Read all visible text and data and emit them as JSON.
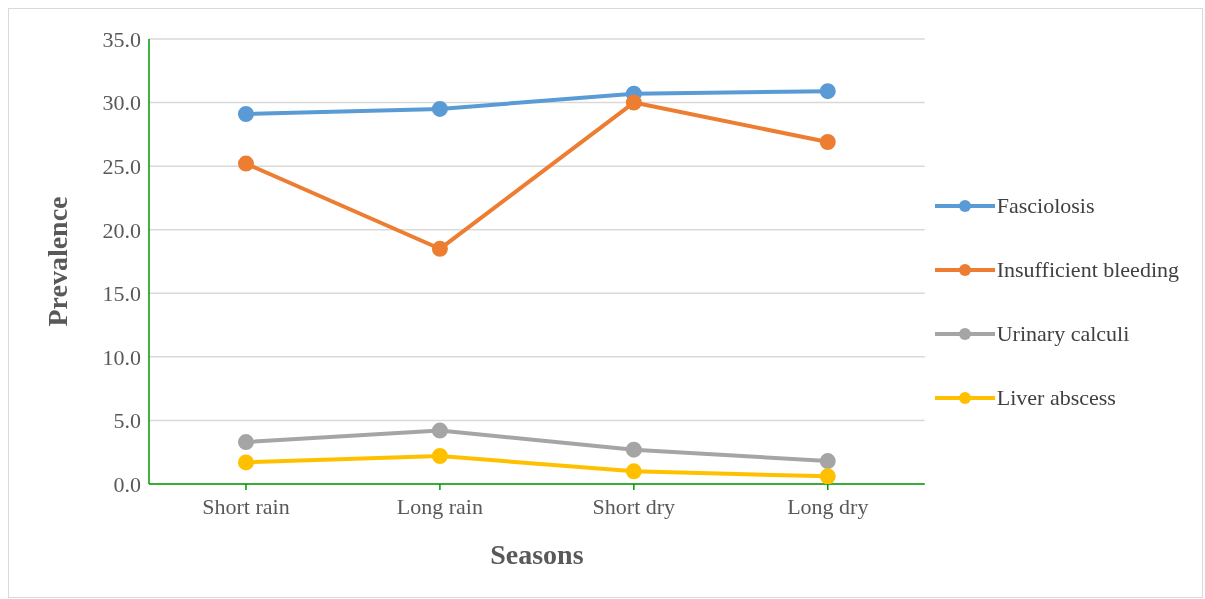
{
  "chart_data": {
    "type": "line",
    "xlabel": "Seasons",
    "ylabel": "Prevalence",
    "categories": [
      "Short rain",
      "Long rain",
      "Short dry",
      "Long dry"
    ],
    "series": [
      {
        "name": "Fasciolosis",
        "color": "#5b9bd5",
        "values": [
          29.1,
          29.5,
          30.7,
          30.9
        ]
      },
      {
        "name": "Insufficient bleeding",
        "color": "#ed7d31",
        "values": [
          25.2,
          18.5,
          30.0,
          26.9
        ]
      },
      {
        "name": "Urinary calculi",
        "color": "#a5a5a5",
        "values": [
          3.3,
          4.2,
          2.7,
          1.8
        ]
      },
      {
        "name": "Liver abscess",
        "color": "#ffc000",
        "values": [
          1.7,
          2.2,
          1.0,
          0.6
        ]
      }
    ],
    "ylim": [
      0,
      35
    ],
    "yticks": [
      {
        "value": 0,
        "label": "0.0"
      },
      {
        "value": 5,
        "label": "5.0"
      },
      {
        "value": 10,
        "label": "10.0"
      },
      {
        "value": 15,
        "label": "15.0"
      },
      {
        "value": 20,
        "label": "20.0"
      },
      {
        "value": 25,
        "label": "25.0"
      },
      {
        "value": 30,
        "label": "30.0"
      },
      {
        "value": 35,
        "label": "35.0"
      }
    ],
    "grid": "y",
    "legend": "right",
    "marker": "circle",
    "line_style": "solid"
  }
}
